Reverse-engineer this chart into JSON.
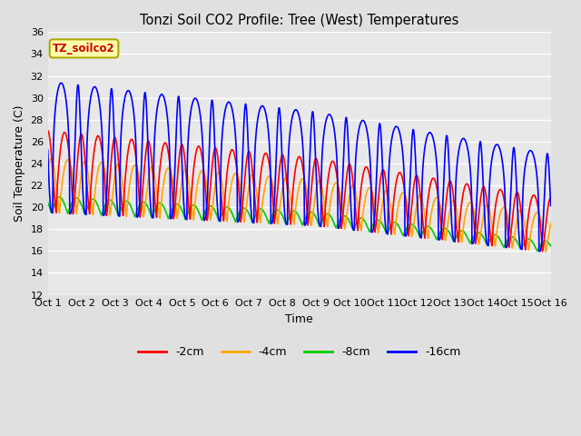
{
  "title": "Tonzi Soil CO2 Profile: Tree (West) Temperatures",
  "xlabel": "Time",
  "ylabel": "Soil Temperature (C)",
  "ylim": [
    12,
    36
  ],
  "yticks": [
    12,
    14,
    16,
    18,
    20,
    22,
    24,
    26,
    28,
    30,
    32,
    34,
    36
  ],
  "xtick_labels": [
    "Oct 1",
    "Oct 2",
    "Oct 3",
    "Oct 4",
    "Oct 5",
    "Oct 6",
    "Oct 7",
    "Oct 8",
    "Oct 9",
    "Oct 10",
    "Oct 11",
    "Oct 12",
    "Oct 13",
    "Oct 14",
    "Oct 15",
    "Oct 16"
  ],
  "series": {
    "-2cm": {
      "color": "#ff0000",
      "lw": 1.2
    },
    "-4cm": {
      "color": "#ffa500",
      "lw": 1.2
    },
    "-8cm": {
      "color": "#00cc00",
      "lw": 1.2
    },
    "-16cm": {
      "color": "#0000ff",
      "lw": 1.2
    }
  },
  "legend_label": "TZ_soilco2",
  "legend_facecolor": "#ffffaa",
  "legend_edgecolor": "#aaaa00",
  "legend_textcolor": "#cc0000",
  "bg_color": "#e0e0e0",
  "plot_bg_color": "#e8e8e8",
  "grid_color": "#ffffff",
  "n_days": 15,
  "pts_per_day": 144
}
